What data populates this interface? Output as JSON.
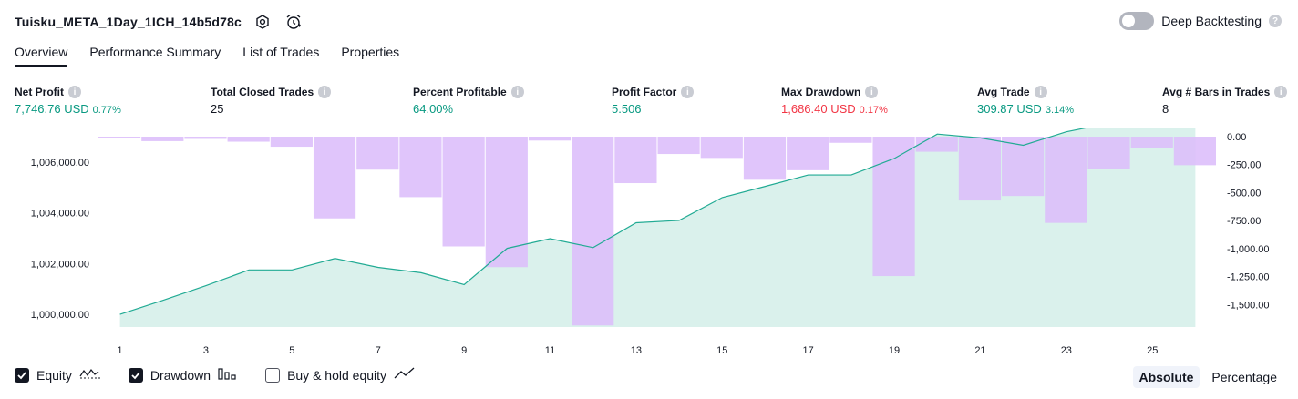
{
  "header": {
    "strategy_title": "Tuisku_META_1Day_1ICH_14b5d78c",
    "icons": [
      "settings-icon",
      "alert-clock-icon"
    ],
    "deep_backtesting_label": "Deep Backtesting",
    "deep_backtesting_enabled": false,
    "help_glyph": "?"
  },
  "tabs": [
    {
      "label": "Overview",
      "active": true
    },
    {
      "label": "Performance Summary",
      "active": false
    },
    {
      "label": "List of Trades",
      "active": false
    },
    {
      "label": "Properties",
      "active": false
    }
  ],
  "metrics": {
    "net_profit": {
      "label": "Net Profit",
      "value": "7,746.76 USD",
      "pct": "0.77%"
    },
    "total_closed_trades": {
      "label": "Total Closed Trades",
      "value": "25"
    },
    "percent_profitable": {
      "label": "Percent Profitable",
      "value": "64.00%"
    },
    "profit_factor": {
      "label": "Profit Factor",
      "value": "5.506"
    },
    "max_drawdown": {
      "label": "Max Drawdown",
      "value": "1,686.40 USD",
      "pct": "0.17%"
    },
    "avg_trade": {
      "label": "Avg Trade",
      "value": "309.87 USD",
      "pct": "3.14%"
    },
    "avg_bars": {
      "label": "Avg # Bars in Trades",
      "value": "8"
    }
  },
  "chart_data": {
    "type": "bar",
    "colors": {
      "equity_line": "#22ab94",
      "equity_fill": "#d3efe9",
      "drawdown": "#dcbdfb",
      "drawdown_over_area": "#b8b8ee"
    },
    "x": [
      1,
      2,
      3,
      4,
      5,
      6,
      7,
      8,
      9,
      10,
      11,
      12,
      13,
      14,
      15,
      16,
      17,
      18,
      19,
      20,
      21,
      22,
      23,
      24,
      25,
      26
    ],
    "x_tick_labels": [
      "1",
      "3",
      "5",
      "7",
      "9",
      "11",
      "13",
      "15",
      "17",
      "19",
      "21",
      "23",
      "25"
    ],
    "left_axis": {
      "ylim": [
        999500,
        1007000
      ],
      "tick_labels": [
        "1,000,000.00",
        "1,002,000.00",
        "1,004,000.00",
        "1,006,000.00"
      ]
    },
    "right_axis": {
      "ylim": [
        -1700,
        0
      ],
      "tick_labels": [
        "0.00",
        "-250.00",
        "-500.00",
        "-750.00",
        "-1,000.00",
        "-1,250.00",
        "-1,500.00"
      ]
    },
    "series": [
      {
        "name": "Equity",
        "axis": "left",
        "values": [
          1000000,
          1000550,
          1001130,
          1001750,
          1001750,
          1002200,
          1001850,
          1001640,
          1001170,
          1002600,
          1002980,
          1002630,
          1003610,
          1003700,
          1004600,
          1005040,
          1005490,
          1005490,
          1006140,
          1007100,
          1006950,
          1006660,
          1007190,
          1007530,
          1007530,
          1007750
        ]
      },
      {
        "name": "Drawdown",
        "axis": "right",
        "values": [
          -5,
          -40,
          -20,
          -45,
          -90,
          -730,
          -295,
          -540,
          -980,
          -1165,
          -35,
          -1686,
          -415,
          -155,
          -190,
          -385,
          -300,
          -55,
          -1245,
          -135,
          -570,
          -530,
          -770,
          -290,
          -100,
          -255
        ]
      }
    ]
  },
  "legend": [
    {
      "label": "Equity",
      "checked": true,
      "icon": "equity-wave-icon"
    },
    {
      "label": "Drawdown",
      "checked": true,
      "icon": "drawdown-bars-icon"
    },
    {
      "label": "Buy & hold equity",
      "checked": false,
      "icon": "trend-line-icon"
    }
  ],
  "modes": [
    {
      "label": "Absolute",
      "active": true
    },
    {
      "label": "Percentage",
      "active": false
    }
  ]
}
